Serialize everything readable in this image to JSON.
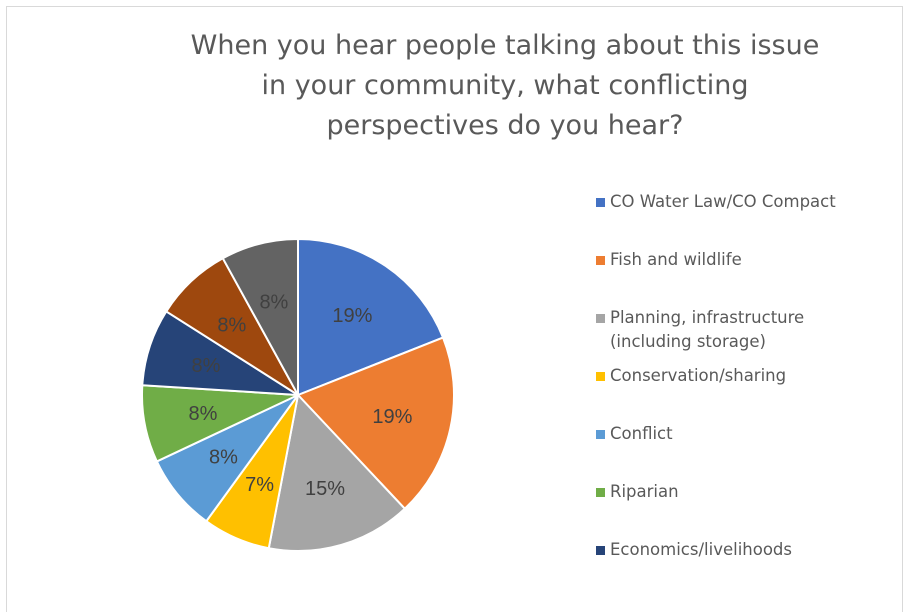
{
  "chart_data": {
    "type": "pie",
    "title": "When you hear people talking about this issue in your community, what conflicting perspectives do you hear?",
    "title_lines": [
      "When you hear people talking about this issue",
      "in your community, what conflicting",
      "perspectives do you hear?"
    ],
    "legend_position": "right",
    "slices": [
      {
        "label": "CO Water Law/CO Compact",
        "value": 19,
        "display": "19%",
        "color": "#4472C4"
      },
      {
        "label": "Fish and wildlife",
        "value": 19,
        "display": "19%",
        "color": "#ED7D31"
      },
      {
        "label": "Planning, infrastructure (including storage)",
        "value": 15,
        "display": "15%",
        "color": "#A5A5A5"
      },
      {
        "label": "Conservation/sharing",
        "value": 7,
        "display": "7%",
        "color": "#FFC000"
      },
      {
        "label": "Conflict",
        "value": 8,
        "display": "8%",
        "color": "#5B9BD5"
      },
      {
        "label": "Riparian",
        "value": 8,
        "display": "8%",
        "color": "#70AD47"
      },
      {
        "label": "Economics/livelihoods",
        "value": 8,
        "display": "8%",
        "color": "#264478"
      },
      {
        "label": "",
        "value": 8,
        "display": "8%",
        "color": "#9E480E"
      },
      {
        "label": "",
        "value": 8,
        "display": "8%",
        "color": "#636363"
      }
    ],
    "legend": [
      {
        "lines": [
          "CO Water Law/CO Compact"
        ],
        "color": "#4472C4"
      },
      {
        "lines": [
          "Fish and wildlife"
        ],
        "color": "#ED7D31"
      },
      {
        "lines": [
          "Planning, infrastructure",
          "(including storage)"
        ],
        "color": "#A5A5A5"
      },
      {
        "lines": [
          "Conservation/sharing"
        ],
        "color": "#FFC000"
      },
      {
        "lines": [
          "Conflict"
        ],
        "color": "#5B9BD5"
      },
      {
        "lines": [
          "Riparian"
        ],
        "color": "#70AD47"
      },
      {
        "lines": [
          "Economics/livelihoods"
        ],
        "color": "#264478"
      }
    ]
  }
}
